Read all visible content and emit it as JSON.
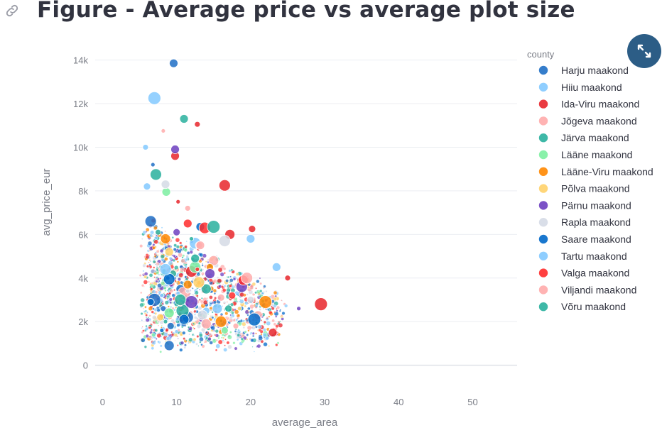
{
  "header": {
    "title": "Figure - Average price vs average plot size",
    "link_icon": "link-icon",
    "expand_icon": "expand-icon"
  },
  "chart_data": {
    "type": "scatter",
    "title": "",
    "xlabel": "average_area",
    "ylabel": "avg_price_eur",
    "xlim": [
      -1,
      56
    ],
    "ylim": [
      -500,
      14800
    ],
    "x_ticks": [
      0,
      10,
      20,
      30,
      40,
      50
    ],
    "y_ticks": [
      0,
      2000,
      4000,
      6000,
      8000,
      10000,
      12000,
      14000
    ],
    "x_tick_labels": [
      "0",
      "10",
      "20",
      "30",
      "40",
      "50"
    ],
    "y_tick_labels": [
      "0",
      "2k",
      "4k",
      "6k",
      "8k",
      "10k",
      "12k",
      "14k"
    ],
    "grid": true,
    "legend_title": "county",
    "legend_position": "right",
    "series": [
      {
        "name": "Harju maakond",
        "color": "#1f6fc5",
        "points": [
          [
            9.6,
            13850
          ],
          [
            6.5,
            6600
          ],
          [
            8.8,
            4000
          ],
          [
            9.2,
            1800
          ],
          [
            9.0,
            900
          ],
          [
            7.0,
            3000
          ],
          [
            8.2,
            2600
          ],
          [
            10.5,
            3500
          ],
          [
            11.5,
            2200
          ],
          [
            6.8,
            9200
          ]
        ]
      },
      {
        "name": "Hiiu maakond",
        "color": "#83c9ff",
        "points": [
          [
            7.0,
            12250
          ],
          [
            5.8,
            10000
          ],
          [
            20.0,
            5800
          ],
          [
            12.5,
            5600
          ],
          [
            8.0,
            3200
          ],
          [
            14.0,
            2500
          ]
        ]
      },
      {
        "name": "Ida-Viru maakond",
        "color": "#e8262c",
        "points": [
          [
            12.8,
            11050
          ],
          [
            9.8,
            9600
          ],
          [
            16.5,
            8250
          ],
          [
            10.2,
            7500
          ],
          [
            20.2,
            6250
          ],
          [
            17.2,
            6000
          ],
          [
            29.5,
            2800
          ],
          [
            25.0,
            4000
          ],
          [
            23.0,
            1500
          ],
          [
            12.0,
            4300
          ]
        ]
      },
      {
        "name": "Jõgeva maakond",
        "color": "#ffabab",
        "points": [
          [
            8.2,
            10750
          ],
          [
            13.0,
            5500
          ],
          [
            15.0,
            4800
          ],
          [
            11.0,
            3300
          ],
          [
            18.0,
            1800
          ],
          [
            21.0,
            2300
          ]
        ]
      },
      {
        "name": "Järva maakond",
        "color": "#29b09d",
        "points": [
          [
            11.0,
            11300
          ],
          [
            7.2,
            8750
          ],
          [
            12.0,
            5800
          ],
          [
            9.5,
            4200
          ],
          [
            14.0,
            3500
          ],
          [
            10.8,
            2500
          ]
        ]
      },
      {
        "name": "Lääne maakond",
        "color": "#7defa1",
        "points": [
          [
            8.6,
            7950
          ],
          [
            12.5,
            4500
          ],
          [
            10.5,
            3200
          ],
          [
            16.5,
            1600
          ],
          [
            9.0,
            2400
          ]
        ]
      },
      {
        "name": "Lääne-Viru maakond",
        "color": "#ff8700",
        "points": [
          [
            14.5,
            4500
          ],
          [
            8.5,
            5800
          ],
          [
            22.0,
            2900
          ],
          [
            19.5,
            3900
          ],
          [
            11.5,
            3700
          ],
          [
            16.0,
            2000
          ]
        ]
      },
      {
        "name": "Põlva maakond",
        "color": "#ffd16a",
        "points": [
          [
            9.0,
            5200
          ],
          [
            13.0,
            3800
          ],
          [
            18.5,
            2600
          ],
          [
            7.8,
            2200
          ]
        ]
      },
      {
        "name": "Pärnu maakond",
        "color": "#6d3fc0",
        "points": [
          [
            9.8,
            9900
          ],
          [
            18.8,
            3600
          ],
          [
            26.5,
            2600
          ],
          [
            10.0,
            6100
          ],
          [
            14.5,
            4200
          ],
          [
            12.0,
            2900
          ]
        ]
      },
      {
        "name": "Rapla maakond",
        "color": "#d5dae5",
        "points": [
          [
            8.5,
            8300
          ],
          [
            16.5,
            5700
          ],
          [
            11.5,
            3400
          ],
          [
            20.0,
            3000
          ],
          [
            13.5,
            2300
          ]
        ]
      },
      {
        "name": "Saare maakond",
        "color": "#0068c9",
        "points": [
          [
            13.2,
            6350
          ],
          [
            9.0,
            3950
          ],
          [
            8.0,
            1600
          ],
          [
            6.5,
            2900
          ],
          [
            11.0,
            2100
          ],
          [
            20.5,
            2100
          ]
        ]
      },
      {
        "name": "Tartu maakond",
        "color": "#83c9ff",
        "points": [
          [
            23.5,
            4500
          ],
          [
            8.5,
            4400
          ],
          [
            10.2,
            3300
          ],
          [
            6.0,
            8200
          ],
          [
            15.5,
            2600
          ]
        ]
      },
      {
        "name": "Valga maakond",
        "color": "#ff2b2b",
        "points": [
          [
            11.5,
            6500
          ],
          [
            13.8,
            6300
          ],
          [
            12.8,
            4400
          ],
          [
            17.5,
            3200
          ],
          [
            19.0,
            3900
          ]
        ]
      },
      {
        "name": "Viljandi maakond",
        "color": "#ffabab",
        "points": [
          [
            11.5,
            7200
          ],
          [
            13.2,
            5500
          ],
          [
            19.5,
            4000
          ],
          [
            10.5,
            2800
          ],
          [
            16.0,
            3100
          ],
          [
            14.0,
            1900
          ]
        ]
      },
      {
        "name": "Võru maakond",
        "color": "#29b09d",
        "points": [
          [
            15.0,
            6350
          ],
          [
            7.5,
            6100
          ],
          [
            12.5,
            4900
          ],
          [
            10.5,
            3000
          ],
          [
            8.5,
            2000
          ],
          [
            17.0,
            2600
          ]
        ]
      }
    ]
  }
}
